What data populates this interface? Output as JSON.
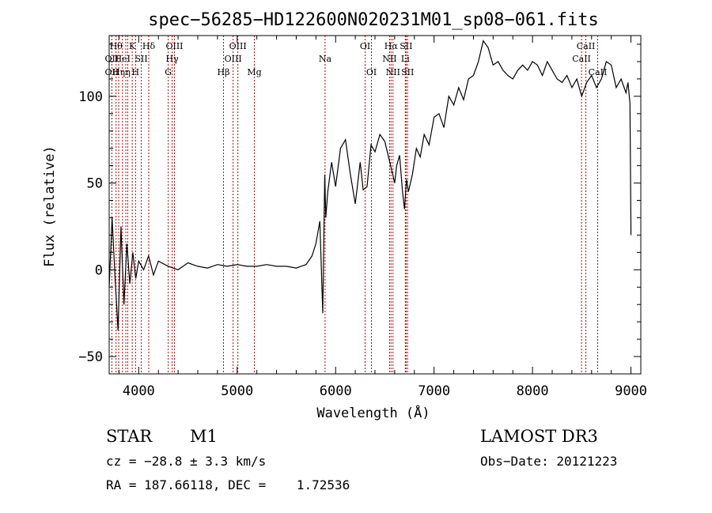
{
  "chart_data": {
    "type": "line",
    "title": "spec−56285−HD122600N020231M01_sp08−061.fits",
    "xlabel": "Wavelength (Å)",
    "ylabel": "Flux (relative)",
    "xlim": [
      3700,
      9100
    ],
    "ylim": [
      -60,
      135
    ],
    "x_ticks": [
      4000,
      5000,
      6000,
      7000,
      8000,
      9000
    ],
    "y_ticks": [
      -50,
      0,
      50,
      100
    ],
    "x_tick_labels": [
      "4000",
      "5000",
      "6000",
      "7000",
      "8000",
      "9000"
    ],
    "y_tick_labels": [
      "−50",
      "0",
      "50",
      "100"
    ],
    "grid": false,
    "series": [
      {
        "x": [
          3700,
          3730,
          3760,
          3790,
          3820,
          3850,
          3880,
          3910,
          3940,
          3970,
          4000,
          4050,
          4100,
          4150,
          4200,
          4300,
          4400,
          4500,
          4600,
          4700,
          4800,
          4900,
          5000,
          5100,
          5200,
          5300,
          5400,
          5500,
          5600,
          5700,
          5760,
          5800,
          5840,
          5870,
          5890,
          5900,
          5920,
          5960,
          6000,
          6050,
          6100,
          6150,
          6200,
          6250,
          6280,
          6320,
          6360,
          6400,
          6450,
          6500,
          6550,
          6580,
          6600,
          6620,
          6650,
          6680,
          6700,
          6720,
          6740,
          6780,
          6820,
          6860,
          6900,
          6950,
          7000,
          7050,
          7100,
          7150,
          7200,
          7250,
          7300,
          7350,
          7400,
          7450,
          7500,
          7550,
          7600,
          7650,
          7700,
          7750,
          7800,
          7850,
          7900,
          7950,
          8000,
          8050,
          8100,
          8150,
          8200,
          8250,
          8300,
          8350,
          8400,
          8450,
          8500,
          8550,
          8600,
          8650,
          8700,
          8750,
          8800,
          8850,
          8900,
          8950,
          8970,
          8990,
          9000
        ],
        "y": [
          -10,
          30,
          -5,
          -35,
          25,
          -20,
          15,
          -8,
          10,
          -5,
          5,
          0,
          8,
          -3,
          5,
          2,
          0,
          4,
          2,
          1,
          3,
          2,
          3,
          2,
          2,
          3,
          2,
          2,
          1,
          3,
          8,
          15,
          28,
          -25,
          55,
          30,
          45,
          62,
          48,
          70,
          75,
          55,
          38,
          62,
          46,
          48,
          72,
          68,
          78,
          74,
          62,
          55,
          50,
          60,
          66,
          45,
          35,
          52,
          45,
          55,
          70,
          65,
          78,
          72,
          88,
          90,
          82,
          100,
          95,
          105,
          98,
          110,
          112,
          120,
          132,
          128,
          118,
          120,
          115,
          112,
          110,
          115,
          118,
          115,
          120,
          118,
          112,
          120,
          115,
          110,
          108,
          112,
          105,
          110,
          100,
          108,
          112,
          105,
          110,
          120,
          118,
          105,
          110,
          102,
          108,
          96,
          20
        ]
      }
    ],
    "lines": [
      {
        "wl": 3727,
        "l1": "OII",
        "row1": 2,
        "l2": "OII",
        "row2": 3
      },
      {
        "wl": 3770,
        "l1": "Hθ",
        "row1": 1
      },
      {
        "wl": 3797,
        "l1": "Hη",
        "row1": 3
      },
      {
        "wl": 3835,
        "l1": "HeI",
        "row1": 2
      },
      {
        "wl": 3869,
        "l1": "",
        "row1": 1
      },
      {
        "wl": 3889,
        "l1": "η",
        "row1": 3
      },
      {
        "wl": 3934,
        "l1": "K",
        "row1": 1
      },
      {
        "wl": 3968,
        "l1": "H",
        "row1": 3
      },
      {
        "wl": 4026,
        "l1": "SII",
        "row1": 2
      },
      {
        "wl": 4102,
        "l1": "Hδ",
        "row1": 1
      },
      {
        "wl": 4300,
        "l1": "G",
        "row1": 3
      },
      {
        "wl": 4340,
        "l1": "Hγ",
        "row1": 2
      },
      {
        "wl": 4363,
        "l1": "OIII",
        "row1": 1
      },
      {
        "wl": 4861,
        "l1": "Hβ",
        "row1": 3
      },
      {
        "wl": 4959,
        "l1": "OIII",
        "row1": 2
      },
      {
        "wl": 5007,
        "l1": "OIII",
        "row1": 1
      },
      {
        "wl": 5175,
        "l1": "Mg",
        "row1": 3
      },
      {
        "wl": 5893,
        "l1": "Na",
        "row1": 2
      },
      {
        "wl": 6300,
        "l1": "OI",
        "row1": 1
      },
      {
        "wl": 6364,
        "l1": "OI",
        "row1": 3
      },
      {
        "wl": 6548,
        "l1": "NII",
        "row1": 2
      },
      {
        "wl": 6563,
        "l1": "Hα",
        "row1": 1
      },
      {
        "wl": 6583,
        "l1": "NII",
        "row1": 3
      },
      {
        "wl": 6708,
        "l1": "Li",
        "row1": 2
      },
      {
        "wl": 6716,
        "l1": "SII",
        "row1": 1
      },
      {
        "wl": 6731,
        "l1": "SII",
        "row1": 3
      },
      {
        "wl": 8498,
        "l1": "CaII",
        "row1": 2
      },
      {
        "wl": 8542,
        "l1": "CaII",
        "row1": 1
      },
      {
        "wl": 8662,
        "l1": "CaII",
        "row1": 3
      }
    ]
  },
  "info": {
    "object_class": "STAR",
    "subclass": "M1",
    "survey": "LAMOST DR3",
    "cz_line": "cz = −28.8 ± 3.3 km/s",
    "obs_date_line": "Obs−Date: 20121223",
    "radec_line": "RA = 187.66118, DEC =    1.72536"
  },
  "colors": {
    "spectrum": "#000000",
    "line_marker": "#c00000",
    "axis": "#000000"
  }
}
